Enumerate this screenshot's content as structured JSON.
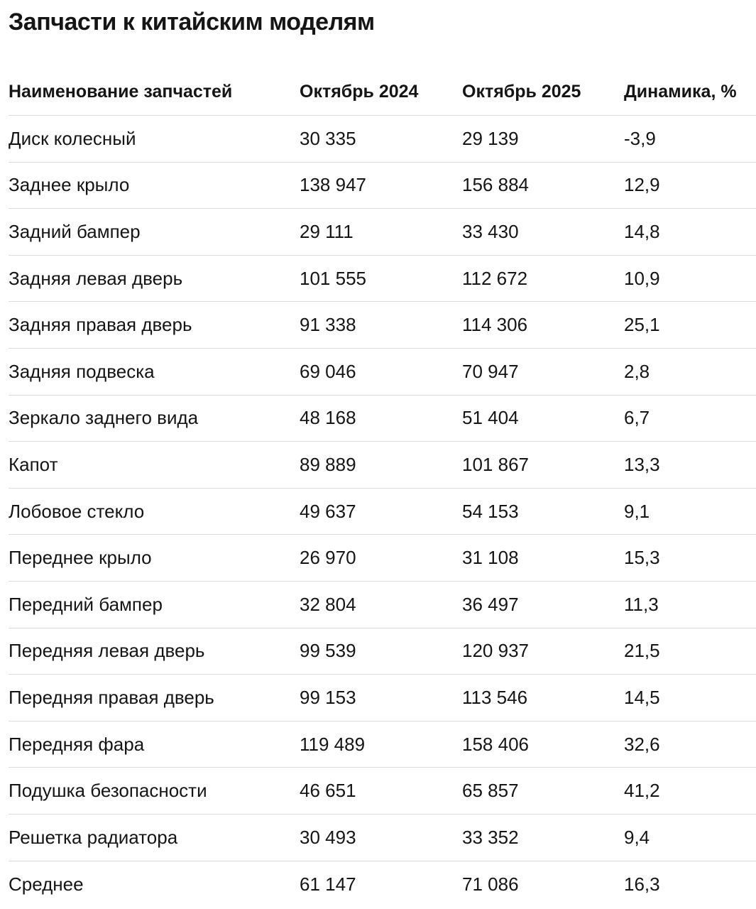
{
  "title": "Запчасти к китайским моделям",
  "table": {
    "header": [
      "Наименование запчастей",
      "Октябрь 2024",
      "Октябрь 2025",
      "Динамика, %"
    ],
    "rows": [
      [
        "Диск колесный",
        "30 335",
        "29 139",
        "-3,9"
      ],
      [
        "Заднее крыло",
        "138 947",
        "156 884",
        "12,9"
      ],
      [
        "Задний бампер",
        "29 111",
        "33 430",
        "14,8"
      ],
      [
        "Задняя левая дверь",
        "101 555",
        "112 672",
        "10,9"
      ],
      [
        "Задняя правая дверь",
        "91 338",
        "114 306",
        "25,1"
      ],
      [
        "Задняя подвеска",
        "69 046",
        "70 947",
        "2,8"
      ],
      [
        "Зеркало заднего вида",
        "48 168",
        "51 404",
        "6,7"
      ],
      [
        "Капот",
        "89 889",
        "101 867",
        "13,3"
      ],
      [
        "Лобовое стекло",
        "49 637",
        "54 153",
        "9,1"
      ],
      [
        "Переднее крыло",
        "26 970",
        "31 108",
        "15,3"
      ],
      [
        "Передний бампер",
        "32 804",
        "36 497",
        "11,3"
      ],
      [
        "Передняя левая дверь",
        "99 539",
        "120 937",
        "21,5"
      ],
      [
        "Передняя правая дверь",
        "99 153",
        "113 546",
        "14,5"
      ],
      [
        "Передняя фара",
        "119 489",
        "158 406",
        "32,6"
      ],
      [
        "Подушка безопасности",
        "46 651",
        "65 857",
        "41,2"
      ],
      [
        "Решетка радиатора",
        "30 493",
        "33 352",
        "9,4"
      ],
      [
        "Среднее",
        "61 147",
        "71 086",
        "16,3"
      ]
    ]
  }
}
